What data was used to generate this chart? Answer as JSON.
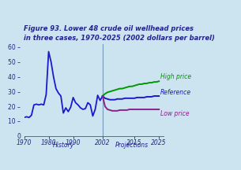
{
  "title_line1": "Figure 93. Lower 48 crude oil wellhead prices",
  "title_line2": "in three cases, 1970-2025 (2002 dollars per barrel)",
  "background_color": "#cce4f0",
  "history_label": "History",
  "projections_label": "Projections",
  "divider_year": 2002,
  "xlim": [
    1970,
    2027
  ],
  "ylim": [
    0,
    62
  ],
  "yticks": [
    0,
    10,
    20,
    30,
    40,
    50,
    60
  ],
  "xticks": [
    1970,
    1980,
    1990,
    2002,
    2015,
    2025
  ],
  "line_color_history": "#1a1acc",
  "line_color_high": "#009900",
  "line_color_ref": "#1a1acc",
  "line_color_low": "#882288",
  "label_high": "High price",
  "label_ref": "Reference",
  "label_low": "Low price",
  "title_color": "#22228a",
  "axis_label_color": "#22228a",
  "history_years": [
    1970,
    1971,
    1972,
    1973,
    1974,
    1975,
    1976,
    1977,
    1978,
    1979,
    1980,
    1981,
    1982,
    1983,
    1984,
    1985,
    1986,
    1987,
    1988,
    1989,
    1990,
    1991,
    1992,
    1993,
    1994,
    1995,
    1996,
    1997,
    1998,
    1999,
    2000,
    2001,
    2002
  ],
  "history_values": [
    12.5,
    13.0,
    12.5,
    14.0,
    21.0,
    21.5,
    21.0,
    21.5,
    21.0,
    28.0,
    57.0,
    50.0,
    40.0,
    32.0,
    29.0,
    27.0,
    15.5,
    19.0,
    16.5,
    19.5,
    26.0,
    22.5,
    21.0,
    19.0,
    18.0,
    18.5,
    22.5,
    21.0,
    13.5,
    18.0,
    27.5,
    24.0,
    27.0
  ],
  "proj_years": [
    2002,
    2003,
    2004,
    2005,
    2006,
    2007,
    2008,
    2009,
    2010,
    2011,
    2012,
    2013,
    2014,
    2015,
    2016,
    2017,
    2018,
    2019,
    2020,
    2021,
    2022,
    2023,
    2024,
    2025
  ],
  "high_values": [
    27.0,
    28.5,
    29.5,
    30.0,
    30.5,
    31.0,
    31.5,
    32.0,
    32.0,
    32.5,
    33.0,
    33.5,
    33.5,
    34.0,
    34.5,
    35.0,
    35.0,
    35.5,
    35.5,
    36.0,
    36.0,
    36.5,
    36.5,
    37.0
  ],
  "ref_values": [
    27.0,
    25.5,
    25.0,
    24.5,
    24.5,
    24.5,
    25.0,
    25.0,
    25.0,
    25.5,
    25.5,
    25.5,
    25.5,
    25.5,
    26.0,
    26.0,
    26.0,
    26.0,
    26.5,
    26.5,
    26.5,
    27.0,
    27.0,
    27.0
  ],
  "low_values": [
    27.0,
    20.0,
    18.0,
    17.5,
    17.0,
    17.0,
    17.0,
    17.5,
    17.5,
    17.5,
    17.5,
    18.0,
    18.0,
    18.0,
    18.0,
    18.0,
    18.0,
    18.0,
    18.0,
    18.0,
    18.0,
    18.0,
    18.0,
    18.0
  ]
}
